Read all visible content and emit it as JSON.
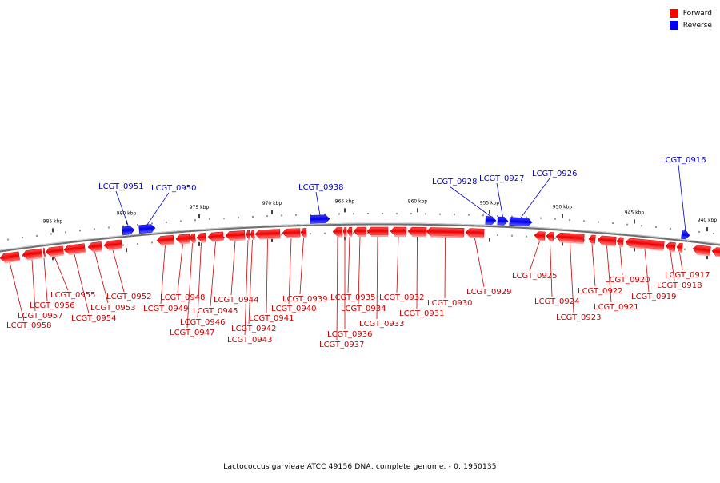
{
  "legend": {
    "forward_label": "Forward",
    "reverse_label": "Reverse",
    "forward_color": "#ff0000",
    "reverse_color": "#0000ff"
  },
  "caption": "Lactococcus garvieae ATCC 49156 DNA, complete genome. - 0..1950135",
  "axis": {
    "unit": "kbp",
    "ticks": [
      "985 kbp",
      "980 kbp",
      "975 kbp",
      "970 kbp",
      "965 kbp",
      "960 kbp",
      "955 kbp",
      "950 kbp",
      "945 kbp",
      "940 kbp"
    ]
  },
  "genes": [
    {
      "name": "LCGT_0958",
      "strand": "forward"
    },
    {
      "name": "LCGT_0957",
      "strand": "forward"
    },
    {
      "name": "LCGT_0956",
      "strand": "forward"
    },
    {
      "name": "LCGT_0955",
      "strand": "forward"
    },
    {
      "name": "LCGT_0954",
      "strand": "forward"
    },
    {
      "name": "LCGT_0953",
      "strand": "forward"
    },
    {
      "name": "LCGT_0952",
      "strand": "forward"
    },
    {
      "name": "LCGT_0951",
      "strand": "reverse"
    },
    {
      "name": "LCGT_0950",
      "strand": "reverse"
    },
    {
      "name": "LCGT_0949",
      "strand": "forward"
    },
    {
      "name": "LCGT_0948",
      "strand": "forward"
    },
    {
      "name": "LCGT_0947",
      "strand": "forward"
    },
    {
      "name": "LCGT_0946",
      "strand": "forward"
    },
    {
      "name": "LCGT_0945",
      "strand": "forward"
    },
    {
      "name": "LCGT_0944",
      "strand": "forward"
    },
    {
      "name": "LCGT_0943",
      "strand": "forward"
    },
    {
      "name": "LCGT_0942",
      "strand": "forward"
    },
    {
      "name": "LCGT_0941",
      "strand": "forward"
    },
    {
      "name": "LCGT_0940",
      "strand": "forward"
    },
    {
      "name": "LCGT_0939",
      "strand": "forward"
    },
    {
      "name": "LCGT_0938",
      "strand": "reverse"
    },
    {
      "name": "LCGT_0937",
      "strand": "forward"
    },
    {
      "name": "LCGT_0936",
      "strand": "forward"
    },
    {
      "name": "LCGT_0935",
      "strand": "forward"
    },
    {
      "name": "LCGT_0934",
      "strand": "forward"
    },
    {
      "name": "LCGT_0933",
      "strand": "forward"
    },
    {
      "name": "LCGT_0932",
      "strand": "forward"
    },
    {
      "name": "LCGT_0931",
      "strand": "forward"
    },
    {
      "name": "LCGT_0930",
      "strand": "forward"
    },
    {
      "name": "LCGT_0929",
      "strand": "forward"
    },
    {
      "name": "LCGT_0928",
      "strand": "reverse"
    },
    {
      "name": "LCGT_0927",
      "strand": "reverse"
    },
    {
      "name": "LCGT_0926",
      "strand": "reverse"
    },
    {
      "name": "LCGT_0925",
      "strand": "forward"
    },
    {
      "name": "LCGT_0924",
      "strand": "forward"
    },
    {
      "name": "LCGT_0923",
      "strand": "forward"
    },
    {
      "name": "LCGT_0922",
      "strand": "forward"
    },
    {
      "name": "LCGT_0921",
      "strand": "forward"
    },
    {
      "name": "LCGT_0920",
      "strand": "forward"
    },
    {
      "name": "LCGT_0919",
      "strand": "forward"
    },
    {
      "name": "LCGT_0918",
      "strand": "forward"
    },
    {
      "name": "LCGT_0917",
      "strand": "forward"
    },
    {
      "name": "LCGT_0916",
      "strand": "reverse"
    }
  ]
}
